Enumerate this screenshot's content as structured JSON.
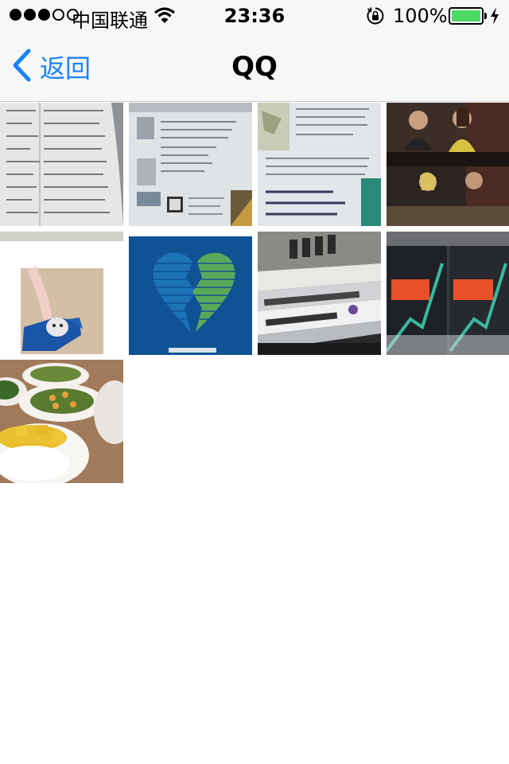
{
  "status_bar": {
    "carrier": "中国联通",
    "time": "23:36",
    "battery_percent": "100%",
    "signal_bars_filled": 3,
    "signal_bars_total": 5,
    "battery_color": "#4cd964"
  },
  "nav_bar": {
    "back_label": "返回",
    "title": "QQ",
    "accent_color": "#1a82fb"
  },
  "photos": [
    {
      "name": "photo-book-page-list"
    },
    {
      "name": "photo-magazine-linus"
    },
    {
      "name": "photo-magazine-page"
    },
    {
      "name": "photo-tv-show-still"
    },
    {
      "name": "photo-hamster-toy"
    },
    {
      "name": "photo-broken-heart"
    },
    {
      "name": "photo-book-stack"
    },
    {
      "name": "photo-book-covers"
    },
    {
      "name": "photo-dinner-dishes"
    }
  ]
}
